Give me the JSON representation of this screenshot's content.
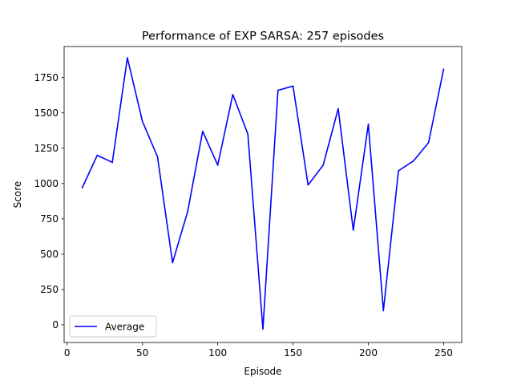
{
  "chart_data": {
    "type": "line",
    "title": "Performance of EXP SARSA: 257 episodes",
    "xlabel": "Episode",
    "ylabel": "Score",
    "xlim": [
      -2,
      262
    ],
    "ylim": [
      -125,
      1970
    ],
    "x_ticks": [
      0,
      50,
      100,
      150,
      200,
      250
    ],
    "y_ticks": [
      0,
      250,
      500,
      750,
      1000,
      1250,
      1500,
      1750
    ],
    "grid": false,
    "legend_position": "lower-left",
    "series": [
      {
        "name": "Average",
        "color": "#0000ff",
        "x": [
          10,
          20,
          30,
          40,
          50,
          60,
          70,
          80,
          90,
          100,
          110,
          120,
          130,
          140,
          150,
          160,
          170,
          180,
          190,
          200,
          210,
          220,
          230,
          240,
          250
        ],
        "y": [
          970,
          1200,
          1150,
          1890,
          1440,
          1190,
          440,
          800,
          1370,
          1130,
          1630,
          1350,
          -30,
          1660,
          1690,
          990,
          1130,
          1530,
          670,
          1420,
          100,
          1090,
          1160,
          1290,
          1810
        ]
      }
    ]
  }
}
